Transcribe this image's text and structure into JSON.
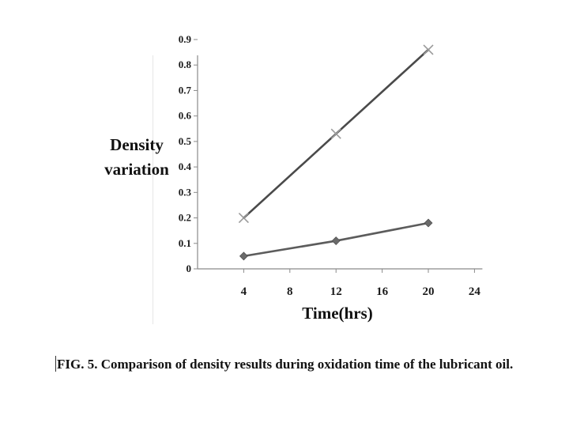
{
  "chart_data": {
    "type": "line",
    "title": "",
    "xlabel": "Time(hrs)",
    "ylabel_lines": [
      "Density",
      "variation"
    ],
    "x_ticks": [
      4,
      8,
      12,
      16,
      20,
      24
    ],
    "y_ticks": [
      "0",
      "0.1",
      "0.2",
      "0.3",
      "0.4",
      "0.5",
      "0.6",
      "0.7",
      "0.8",
      "0.9"
    ],
    "xlim": [
      0,
      24
    ],
    "ylim": [
      0,
      0.9
    ],
    "grid": false,
    "series": [
      {
        "marker": "x",
        "color": "#4a4a4a",
        "marker_color": "#9a9a9a",
        "points": [
          [
            4,
            0.2
          ],
          [
            12,
            0.53
          ],
          [
            20,
            0.86
          ]
        ]
      },
      {
        "marker": "diamond",
        "color": "#5c5c5c",
        "marker_color": "#6a6a6a",
        "points": [
          [
            4,
            0.05
          ],
          [
            12,
            0.11
          ],
          [
            20,
            0.18
          ]
        ]
      }
    ]
  },
  "caption": "FIG. 5. Comparison of density results during oxidation time of the lubricant oil."
}
